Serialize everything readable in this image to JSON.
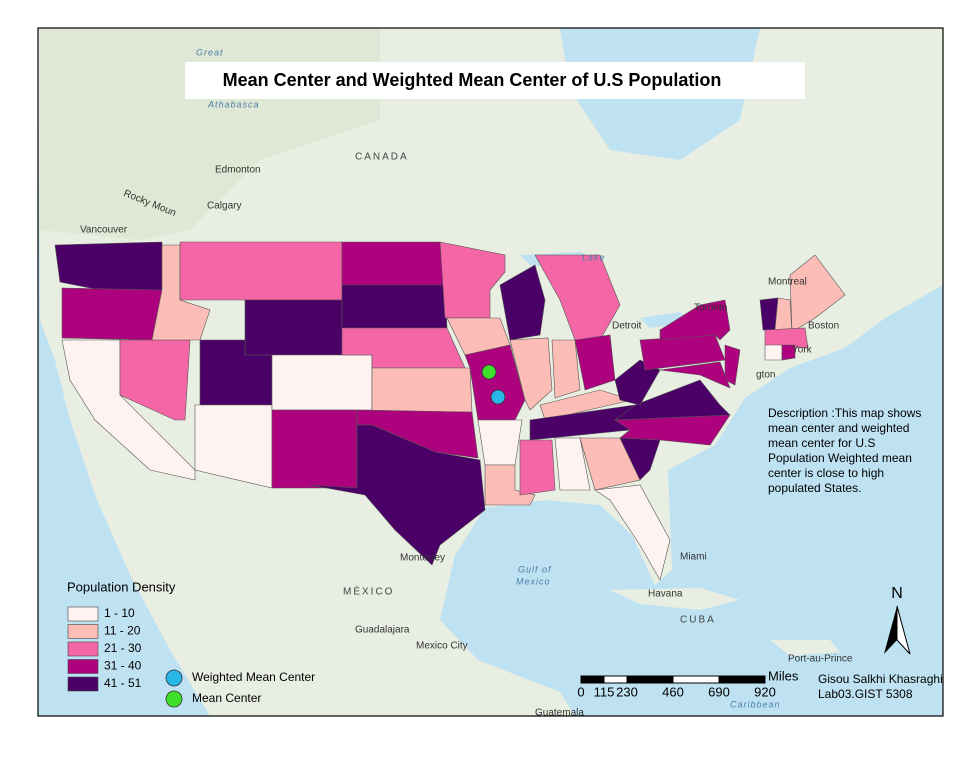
{
  "title": "Mean Center and Weighted Mean Center of U.S Population",
  "places": [
    "Great",
    "Athabasca",
    "Edmonton",
    "Calgary",
    "CANADA",
    "Vancouver",
    "Rocky Moun",
    "Lake",
    "Montreal",
    "Toronto",
    "Detroit",
    "Boston",
    "York",
    "gton",
    "Miami",
    "Havana",
    "CUBA",
    "Port-au-Prince",
    "Monterrey",
    "MÉXICO",
    "Guadalajara",
    "Mexico City",
    "Gulf of",
    "Mexico",
    "Guatemala",
    "Caribbean"
  ],
  "description": [
    "Description :This map shows",
    "mean center and weighted",
    "mean center for U.S",
    "Population  Weighted mean",
    "center is close to high",
    "populated States."
  ],
  "legend": {
    "title": "Population Density",
    "classes": [
      {
        "label": "1 - 10",
        "color": "#fff3f1"
      },
      {
        "label": "11 - 20",
        "color": "#fbbdb6"
      },
      {
        "label": "21 - 30",
        "color": "#f466a6"
      },
      {
        "label": "31 - 40",
        "color": "#ae017e"
      },
      {
        "label": "41 - 51",
        "color": "#4a0066"
      }
    ],
    "points": [
      {
        "label": "Weighted Mean Center",
        "color": "#29b6e8"
      },
      {
        "label": "Mean Center",
        "color": "#3ee02c"
      }
    ]
  },
  "north_arrow": "N",
  "scale_bar": {
    "ticks": [
      0,
      115,
      230,
      460,
      690,
      920
    ],
    "unit": "Miles"
  },
  "credits": [
    "Gisou Salkhi Khasraghi",
    "Lab03.GIST 5308"
  ]
}
